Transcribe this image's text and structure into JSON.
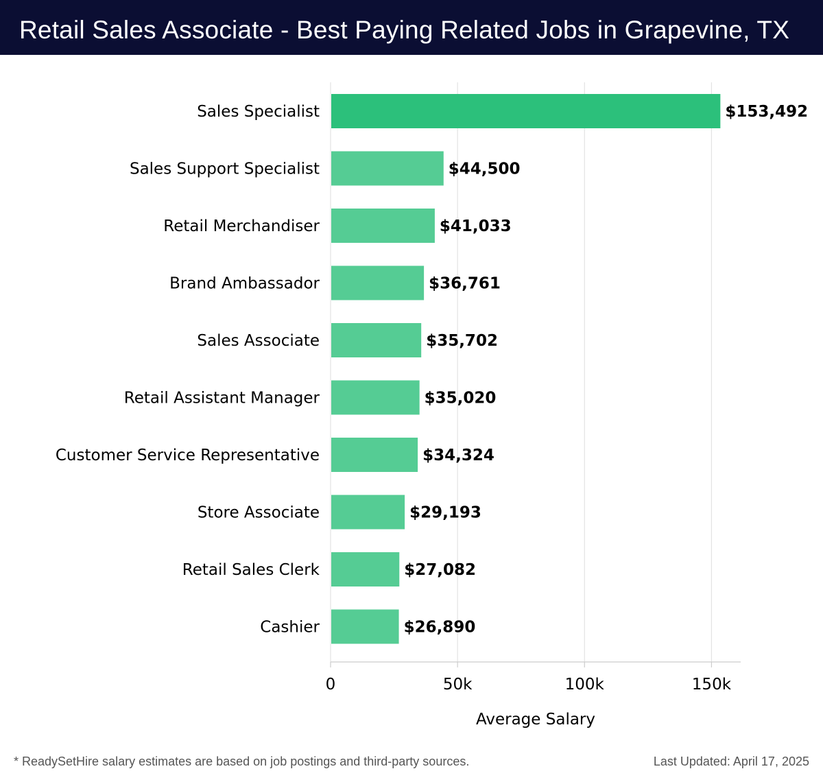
{
  "header": {
    "title": "Retail Sales Associate - Best Paying Related Jobs in Grapevine, TX"
  },
  "chart_data": {
    "type": "bar",
    "orientation": "horizontal",
    "categories": [
      "Sales Specialist",
      "Sales Support Specialist",
      "Retail Merchandiser",
      "Brand Ambassador",
      "Sales Associate",
      "Retail Assistant Manager",
      "Customer Service Representative",
      "Store Associate",
      "Retail Sales Clerk",
      "Cashier"
    ],
    "values": [
      153492,
      44500,
      41033,
      36761,
      35702,
      35020,
      34324,
      29193,
      27082,
      26890
    ],
    "value_labels": [
      "$153,492",
      "$44,500",
      "$41,033",
      "$36,761",
      "$35,702",
      "$35,020",
      "$34,324",
      "$29,193",
      "$27,082",
      "$26,890"
    ],
    "xlabel": "Average Salary",
    "ylabel": "",
    "xlim": [
      0,
      161500
    ],
    "xticks": [
      0,
      50000,
      100000,
      150000
    ],
    "xtick_labels": [
      "0",
      "50k",
      "100k",
      "150k"
    ],
    "grid": "vertical",
    "colors": {
      "highlight": "#2cc07b",
      "bar": "#55cc94",
      "grid": "#e3e3e3",
      "text": "#000000"
    }
  },
  "footer": {
    "note": "* ReadySetHire salary estimates are based on job postings and third-party sources.",
    "updated": "Last Updated: April 17, 2025"
  }
}
